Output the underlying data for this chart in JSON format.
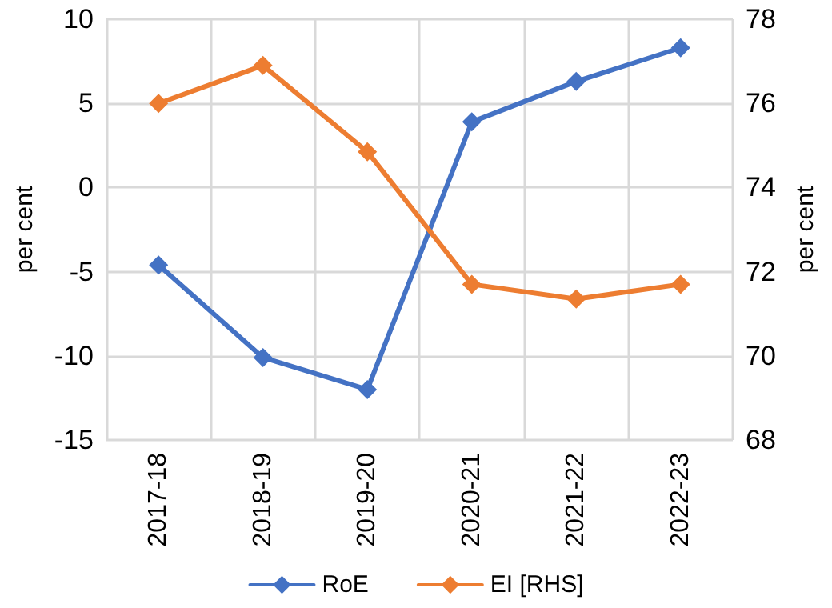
{
  "chart_data": {
    "type": "line",
    "categories": [
      "2017-18",
      "2018-19",
      "2019-20",
      "2020-21",
      "2021-22",
      "2022-23"
    ],
    "series": [
      {
        "name": "RoE",
        "color": "#4472c4",
        "values": [
          -4.6,
          -10.1,
          -12.0,
          3.9,
          6.3,
          8.3
        ]
      },
      {
        "name": "EI [RHS]",
        "color": "#ed7d31",
        "axis": "y2",
        "values": [
          76.0,
          76.9,
          74.85,
          71.7,
          71.35,
          71.7
        ]
      }
    ],
    "ylabel": "per cent",
    "y2label": "per cent",
    "ylim": [
      -15,
      10
    ],
    "yticks": [
      -15,
      -10,
      -5,
      0,
      5,
      10
    ],
    "y2lim": [
      68,
      78
    ],
    "y2ticks": [
      68,
      70,
      72,
      74,
      76,
      78
    ],
    "grid": true,
    "legend": "bottom",
    "marker": "diamond",
    "line_style": "solid"
  }
}
